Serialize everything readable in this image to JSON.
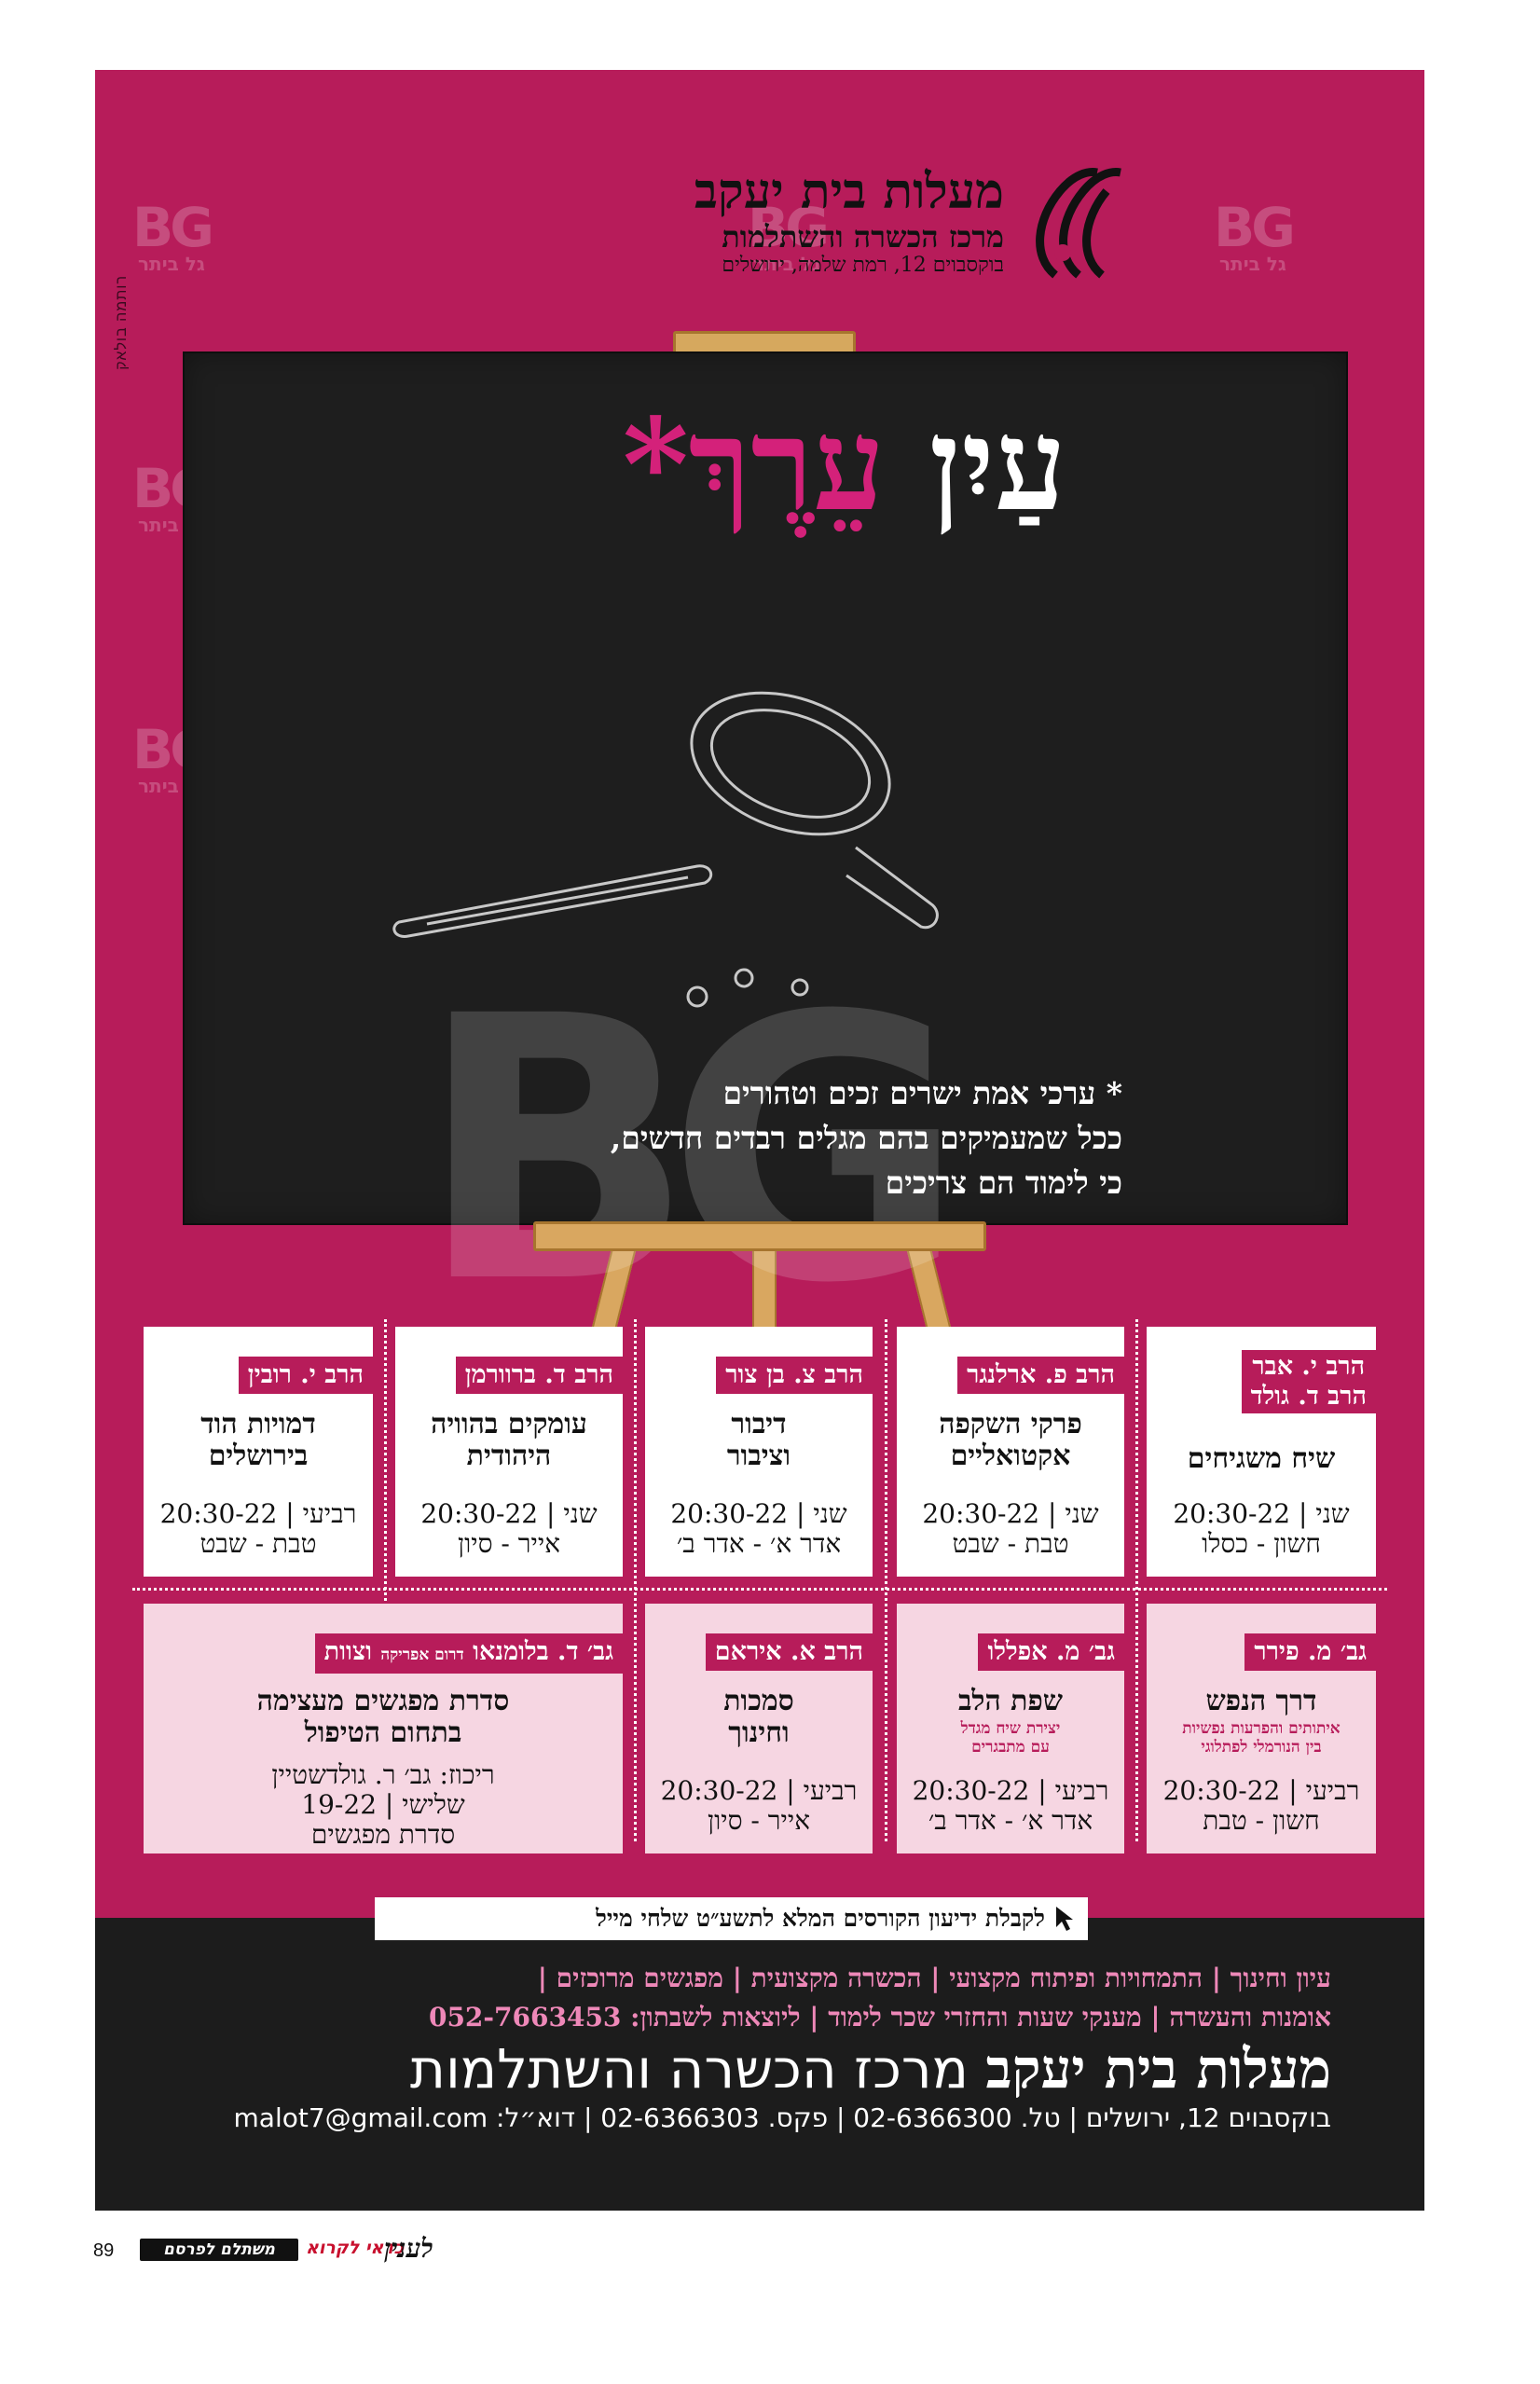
{
  "logo": {
    "title": "מעלות בית יעקב",
    "subtitle": "מרכז הכשרה והשתלמות",
    "address": "בוקסבוים 12, רמת שלמה, ירושלים"
  },
  "side_credit": "רותמה בולאק",
  "watermark": {
    "mark": "BG",
    "text": "גל ביתר"
  },
  "board": {
    "title_white": "עַיִן",
    "title_pink": "עֵרֶךְ",
    "title_star": "*",
    "note_lines": [
      "* ערכי אמת ישרים זכים וטהורים",
      "ככל שמעמיקים בהם מגלים רבדים חדשים,",
      "כי לימוד הם צריכים"
    ]
  },
  "courses_row1": [
    {
      "teacher_lines": [
        "הרב י. אבר",
        "הרב ד. גולד"
      ],
      "topic_lines": [
        "שיח משגיחים"
      ],
      "schedule_lines": [
        "שני | 20:30-22",
        "חשון - כסלו"
      ]
    },
    {
      "teacher_lines": [
        "הרב פ. ארלנגר"
      ],
      "topic_lines": [
        "פרקי השקפה",
        "אקטואליים"
      ],
      "schedule_lines": [
        "שני | 20:30-22",
        "טבת - שבט"
      ]
    },
    {
      "teacher_lines": [
        "הרב צ. בן צור"
      ],
      "topic_lines": [
        "דיבור",
        "וציבור"
      ],
      "schedule_lines": [
        "שני | 20:30-22",
        "אדר א׳ - אדר ב׳"
      ]
    },
    {
      "teacher_lines": [
        "הרב ד. ברוורמן"
      ],
      "topic_lines": [
        "עומקים בהוויה",
        "היהודית"
      ],
      "schedule_lines": [
        "שני | 20:30-22",
        "אייר - סיון"
      ]
    },
    {
      "teacher_lines": [
        "הרב י. רובין"
      ],
      "topic_lines": [
        "דמויות הוד",
        "בירושלים"
      ],
      "schedule_lines": [
        "רביעי | 20:30-22",
        "טבת - שבט"
      ]
    }
  ],
  "courses_row2": [
    {
      "teacher": "גב׳ מ. פירר",
      "topic": "דרך הנפש",
      "sub_lines": [
        "איתותים והפרעות נפשיות",
        "בין הנורמלי לפתלוגי"
      ],
      "schedule_lines": [
        "רביעי | 20:30-22",
        "חשון - טבת"
      ]
    },
    {
      "teacher": "גב׳ מ. אפללו",
      "topic": "שפת הלב",
      "sub_lines": [
        "יצירת שיח מגדל",
        "עם מתבגרים"
      ],
      "schedule_lines": [
        "רביעי | 20:30-22",
        "אדר א׳ - אדר ב׳"
      ]
    },
    {
      "teacher": "הרב א. איראם",
      "topic_lines": [
        "סמכות",
        "וחינוך"
      ],
      "schedule_lines": [
        "רביעי | 20:30-22",
        "אייר - סיון"
      ]
    },
    {
      "teacher": "גב׳ ד. בלומנאו",
      "teacher_small": "דרום אפריקה",
      "teacher_extra": "וצוות",
      "topic_lines": [
        "סדרת מפגשים מעצימה",
        "בתחום הטיפול"
      ],
      "schedule_lines": [
        "ריכוז: גב׳ ר. גולדשטיין",
        "שלישי | 19-22",
        "סדרת מפגשים"
      ]
    }
  ],
  "cta": "לקבלת ידיעון הקורסים המלא לתשע״ט שלחי מייל",
  "bottom": {
    "line1": "עיון וחינוך | התמחויות ופיתוח מקצועי | הכשרה מקצועית | מפגשים מרוכזים |",
    "line2": "אומנות והעשרה | מענקי שעות והחזרי שכר לימוד | ליוצאות לשבתון: 052-7663453",
    "title_bold": "מעלות בית יעקב",
    "title_rest": " מרכז הכשרה והשתלמות",
    "address": "בוקסבוים 12, ירושלים | טל. 02-6366300 | פקס. 02-6366303 | דוא״ל: malot7@gmail.com"
  },
  "footer": {
    "page_number": "89",
    "paid": "משתלם לפרסם",
    "worth": "כדאי לקרוא",
    "brand": "לענין"
  },
  "colors": {
    "magenta": "#b71c5a",
    "board": "#1e1e1e",
    "pink_text": "#ee88b8",
    "card_pink": "#f6d6e2"
  }
}
